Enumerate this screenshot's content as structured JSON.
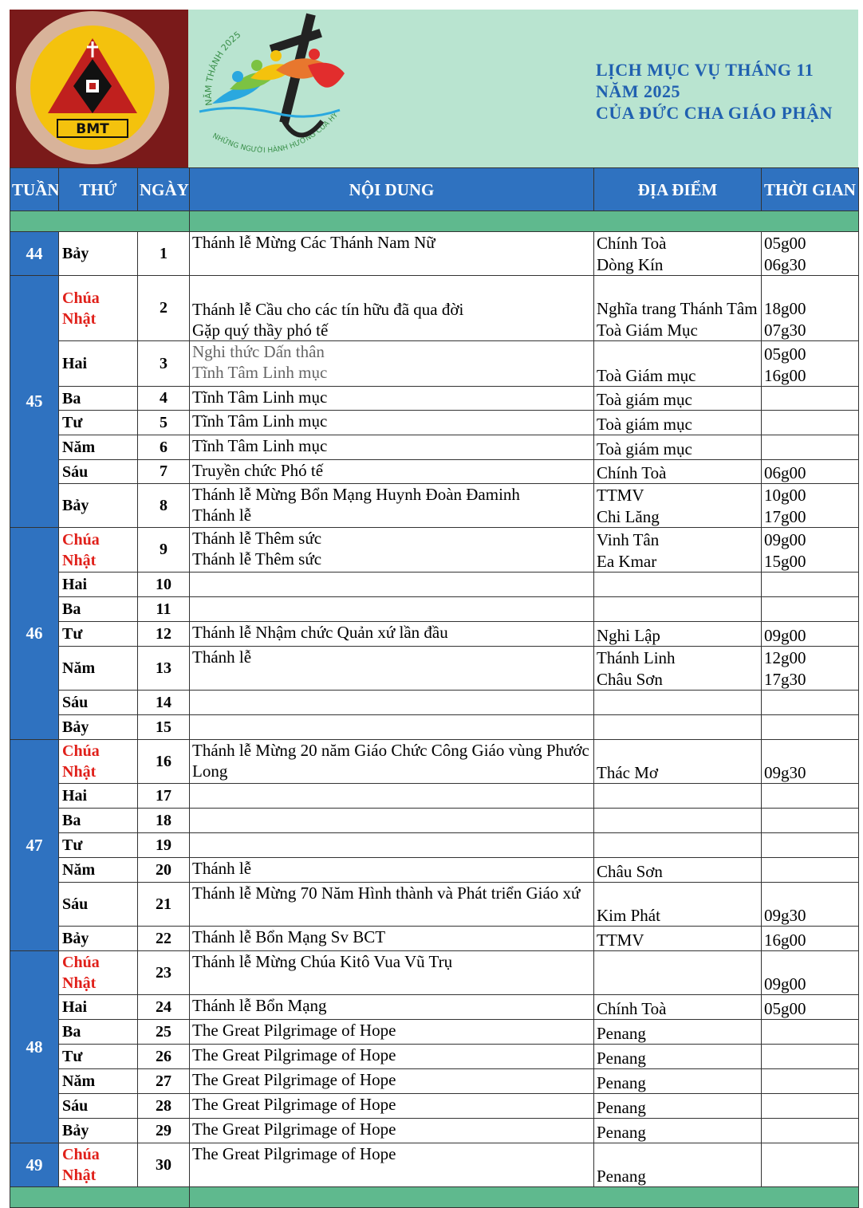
{
  "header": {
    "logo_text": "BMT",
    "jubilee_top": "NĂM THÁNH 2025",
    "jubilee_bottom": "NHỮNG NGƯỜI HÀNH HƯƠNG CỦA HY VỌNG",
    "title": [
      "LỊCH MỤC VỤ THÁNG 11",
      "NĂM 2025",
      "CỦA ĐỨC CHA GIÁO PHẬN"
    ]
  },
  "table": {
    "columns": [
      "TUẦN",
      "THỨ",
      "NGÀY",
      "NỘI DUNG",
      "ĐỊA ĐIỂM",
      "THỜI GIAN"
    ],
    "weeks": [
      {
        "week": 44,
        "days": [
          {
            "weekday": "Bảy",
            "date": 1,
            "content": [
              "Thánh lễ Mừng Các Thánh Nam Nữ"
            ],
            "location": [
              "Chính Toà",
              "Dòng Kín"
            ],
            "time": [
              "05g00",
              "06g30"
            ]
          }
        ]
      },
      {
        "week": 45,
        "days": [
          {
            "weekday": "Chúa Nhật",
            "date": 2,
            "content": [
              "Thánh lễ Cầu cho các tín hữu đã qua đời",
              "Gặp quý thầy phó tế"
            ],
            "location": [
              "Nghĩa trang Thánh Tâm",
              "Toà Giám Mục"
            ],
            "time": [
              "18g00",
              "07g30"
            ]
          },
          {
            "weekday": "Hai",
            "date": 3,
            "content": [
              "Nghi thức Dấn thân",
              "Tĩnh Tâm Linh mục"
            ],
            "location": [
              "Toà Giám mục"
            ],
            "time": [
              "05g00",
              "16g00"
            ]
          },
          {
            "weekday": "Ba",
            "date": 4,
            "content": [
              "Tĩnh Tâm Linh mục"
            ],
            "location": [
              "Toà giám mục"
            ]
          },
          {
            "weekday": "Tư",
            "date": 5,
            "content": [
              "Tĩnh Tâm Linh mục"
            ],
            "location": [
              "Toà giám mục"
            ]
          },
          {
            "weekday": "Năm",
            "date": 6,
            "content": [
              "Tĩnh Tâm Linh mục"
            ],
            "location": [
              "Toà giám mục"
            ]
          },
          {
            "weekday": "Sáu",
            "date": 7,
            "content": [
              "Truyền chức Phó tế"
            ],
            "location": [
              "Chính Toà"
            ],
            "time": [
              "06g00"
            ]
          },
          {
            "weekday": "Bảy",
            "date": 8,
            "content": [
              "Thánh lễ Mừng Bổn Mạng Huynh Đoàn Đaminh",
              "Thánh lễ"
            ],
            "location": [
              "TTMV",
              "Chi Lăng"
            ],
            "time": [
              "10g00",
              "17g00"
            ]
          }
        ]
      },
      {
        "week": 46,
        "days": [
          {
            "weekday": "Chúa Nhật",
            "date": 9,
            "content": [
              "Thánh lễ Thêm sức",
              "Thánh lễ Thêm sức"
            ],
            "location": [
              "Vinh Tân",
              "Ea Kmar"
            ],
            "time": [
              "09g00",
              "15g00"
            ]
          },
          {
            "weekday": "Hai",
            "date": 10
          },
          {
            "weekday": "Ba",
            "date": 11
          },
          {
            "weekday": "Tư",
            "date": 12,
            "content": [
              "Thánh lễ Nhậm chức Quản xứ lần đầu"
            ],
            "location": [
              "Nghi Lập"
            ],
            "time": [
              "09g00"
            ]
          },
          {
            "weekday": "Năm",
            "date": 13,
            "content": [
              "Thánh lễ"
            ],
            "location": [
              "Thánh Linh",
              "Châu Sơn"
            ],
            "time": [
              "12g00",
              "17g30"
            ]
          },
          {
            "weekday": "Sáu",
            "date": 14
          },
          {
            "weekday": "Bảy",
            "date": 15
          }
        ]
      },
      {
        "week": 47,
        "days": [
          {
            "weekday": "Chúa Nhật",
            "date": 16,
            "content": [
              "Thánh lễ Mừng 20 năm Giáo Chức Công Giáo vùng Phước Long"
            ],
            "location": [
              "Thác Mơ"
            ],
            "time": [
              "09g30"
            ]
          },
          {
            "weekday": "Hai",
            "date": 17
          },
          {
            "weekday": "Ba",
            "date": 18
          },
          {
            "weekday": "Tư",
            "date": 19
          },
          {
            "weekday": "Năm",
            "date": 20,
            "content": [
              "Thánh lễ"
            ],
            "location": [
              "Châu Sơn"
            ]
          },
          {
            "weekday": "Sáu",
            "date": 21,
            "content": [
              "Thánh lễ Mừng 70 Năm Hình thành và Phát triển Giáo xứ"
            ],
            "location": [
              "Kim Phát"
            ],
            "time": [
              "09g30"
            ]
          },
          {
            "weekday": "Bảy",
            "date": 22,
            "content": [
              "Thánh lễ Bổn Mạng Sv BCT"
            ],
            "location": [
              "TTMV"
            ],
            "time": [
              "16g00"
            ]
          }
        ]
      },
      {
        "week": 48,
        "days": [
          {
            "weekday": "Chúa Nhật",
            "date": 23,
            "content": [
              "Thánh lễ Mừng Chúa Kitô Vua Vũ Trụ"
            ],
            "time": [
              "09g00"
            ]
          },
          {
            "weekday": "Hai",
            "date": 24,
            "content": [
              "Thánh lễ Bổn Mạng"
            ],
            "location": [
              "Chính Toà"
            ],
            "time": [
              "05g00"
            ]
          },
          {
            "weekday": "Ba",
            "date": 25,
            "content": [
              "The Great Pilgrimage of Hope"
            ],
            "location": [
              "Penang"
            ]
          },
          {
            "weekday": "Tư",
            "date": 26,
            "content": [
              "The Great Pilgrimage of Hope"
            ],
            "location": [
              "Penang"
            ]
          },
          {
            "weekday": "Năm",
            "date": 27,
            "content": [
              "The Great Pilgrimage of Hope"
            ],
            "location": [
              "Penang"
            ]
          },
          {
            "weekday": "Sáu",
            "date": 28,
            "content": [
              "The Great Pilgrimage of Hope"
            ],
            "location": [
              "Penang"
            ]
          },
          {
            "weekday": "Bảy",
            "date": 29,
            "content": [
              "The Great Pilgrimage of Hope"
            ],
            "location": [
              "Penang"
            ]
          }
        ]
      },
      {
        "week": 49,
        "days": [
          {
            "weekday": "Chúa Nhật",
            "date": 30,
            "content": [
              "The Great Pilgrimage of Hope"
            ],
            "location": [
              "Penang"
            ]
          }
        ]
      }
    ]
  }
}
